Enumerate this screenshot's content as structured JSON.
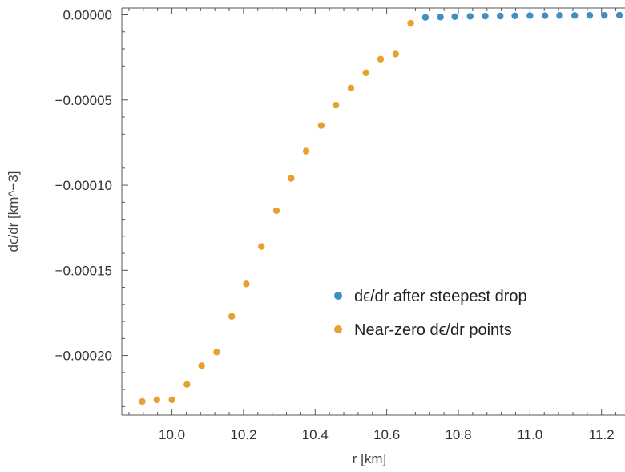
{
  "chart_data": {
    "type": "scatter",
    "title": "",
    "xlabel": "r [km]",
    "ylabel": "dϵ/dr [km^−3]",
    "xlim": [
      9.86,
      11.27
    ],
    "ylim": [
      -0.000235,
      4e-06
    ],
    "x_ticks": [
      10.0,
      10.2,
      10.4,
      10.6,
      10.8,
      11.0,
      11.2
    ],
    "x_tick_labels": [
      "10.0",
      "10.2",
      "10.4",
      "10.6",
      "10.8",
      "11.0",
      "11.2"
    ],
    "y_ticks": [
      0.0,
      -5e-05,
      -0.0001,
      -0.00015,
      -0.0002
    ],
    "y_tick_labels": [
      "0.00000",
      "−0.00005",
      "−0.00010",
      "−0.00015",
      "−0.00020"
    ],
    "grid": false,
    "legend_position": "center-right",
    "series": [
      {
        "name": "dϵ/dr after steepest drop",
        "color": "#3e8fc4",
        "x": [
          10.708,
          10.75,
          10.79,
          10.833,
          10.875,
          10.917,
          10.958,
          11.0,
          11.042,
          11.083,
          11.125,
          11.167,
          11.208,
          11.25
        ],
        "y": [
          -1.5e-06,
          -1.3e-06,
          -1.1e-06,
          -9e-07,
          -8e-07,
          -7e-07,
          -6e-07,
          -5e-07,
          -5e-07,
          -4e-07,
          -4e-07,
          -3e-07,
          -3e-07,
          -2e-07
        ]
      },
      {
        "name": "Near-zero dϵ/dr points",
        "color": "#e8a030",
        "x": [
          9.917,
          9.958,
          10.0,
          10.042,
          10.083,
          10.125,
          10.167,
          10.208,
          10.25,
          10.292,
          10.333,
          10.375,
          10.417,
          10.458,
          10.5,
          10.542,
          10.583,
          10.625,
          10.667
        ],
        "y": [
          -0.000227,
          -0.000226,
          -0.000226,
          -0.000217,
          -0.000206,
          -0.000198,
          -0.000177,
          -0.000158,
          -0.000136,
          -0.000115,
          -9.6e-05,
          -8e-05,
          -6.5e-05,
          -5.3e-05,
          -4.3e-05,
          -3.4e-05,
          -2.6e-05,
          -2.3e-05,
          -5e-06
        ]
      }
    ]
  }
}
